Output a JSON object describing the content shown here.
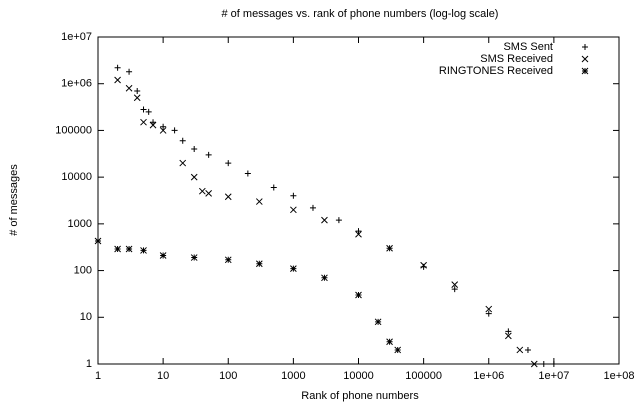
{
  "chart_data": {
    "type": "scatter",
    "title": "# of messages vs. rank of phone numbers (log-log scale)",
    "x_label": "Rank of  phone numbers",
    "y_label": "# of messages",
    "xlog": true,
    "ylog": true,
    "xlim": [
      1,
      100000000
    ],
    "ylim": [
      1,
      10000000
    ],
    "xticks": [
      1,
      10,
      100,
      1000,
      10000,
      100000,
      {
        "value": 1000000,
        "label": "1e+06"
      },
      {
        "value": 10000000,
        "label": "1e+07"
      },
      {
        "value": 100000000,
        "label": "1e+08"
      }
    ],
    "yticks": [
      1,
      10,
      100,
      1000,
      10000,
      100000,
      {
        "value": 1000000,
        "label": "1e+06"
      },
      {
        "value": 10000000,
        "label": "1e+07"
      }
    ],
    "legend": "top-right",
    "series": [
      {
        "name": "SMS Sent",
        "color": "#000000",
        "marker": "plus",
        "x": [
          2,
          3,
          4,
          5,
          6,
          7,
          10,
          15,
          20,
          30,
          50,
          100,
          200,
          500,
          1000,
          2000,
          5000,
          10000,
          30000,
          100000,
          300000,
          1000000,
          2000000,
          4000000,
          7000000,
          10000000
        ],
        "values": [
          2200000,
          1800000,
          700000,
          280000,
          250000,
          150000,
          120000,
          100000,
          60000,
          40000,
          30000,
          20000,
          12000,
          6000,
          4000,
          2200,
          1200,
          700,
          300,
          120,
          40,
          12,
          5,
          2,
          1,
          1
        ]
      },
      {
        "name": "SMS Received",
        "color": "#000000",
        "marker": "cross",
        "x": [
          2,
          3,
          4,
          5,
          7,
          10,
          20,
          30,
          40,
          50,
          100,
          300,
          1000,
          3000,
          10000,
          30000,
          100000,
          300000,
          1000000,
          2000000,
          3000000,
          5000000
        ],
        "values": [
          1200000,
          800000,
          500000,
          150000,
          130000,
          100000,
          20000,
          10000,
          5000,
          4500,
          3800,
          3000,
          2000,
          1200,
          600,
          300,
          130,
          50,
          15,
          4,
          2,
          1
        ]
      },
      {
        "name": "RINGTONES Received",
        "color": "#000000",
        "marker": "star",
        "x": [
          1,
          2,
          3,
          5,
          10,
          30,
          100,
          300,
          1000,
          3000,
          10000,
          20000,
          30000,
          40000
        ],
        "values": [
          430,
          290,
          290,
          270,
          210,
          190,
          170,
          140,
          110,
          70,
          30,
          8,
          3,
          2
        ]
      }
    ]
  }
}
